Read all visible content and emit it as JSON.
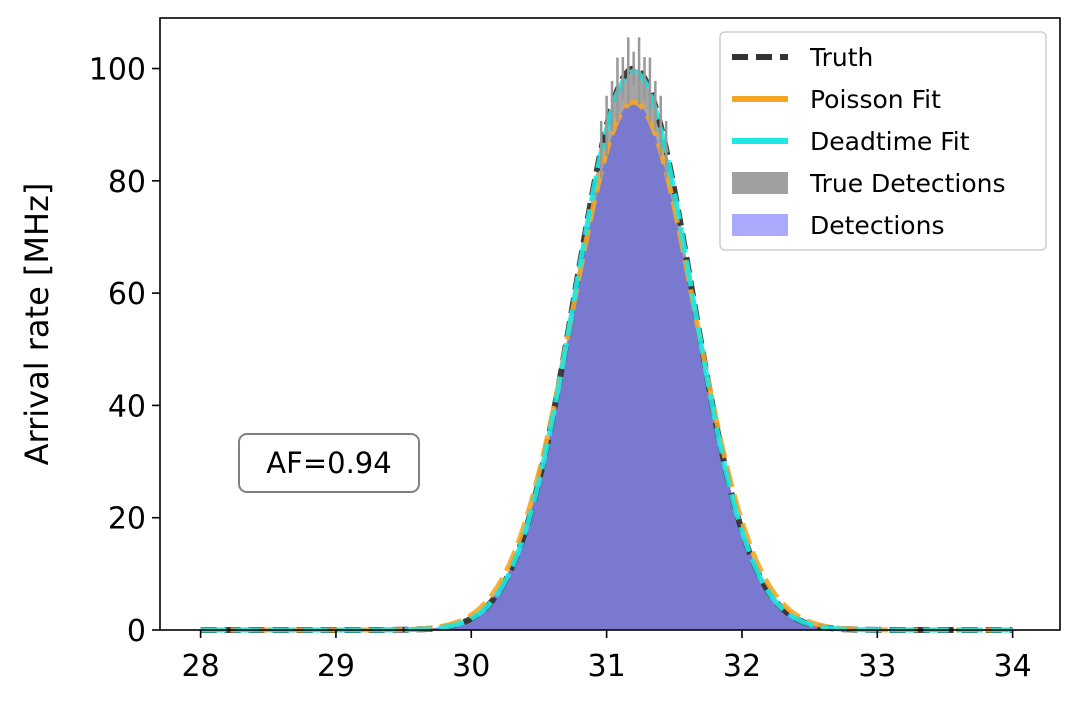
{
  "chart_data": {
    "type": "area",
    "title": "",
    "xlabel": "",
    "ylabel": "Arrival rate [MHz]",
    "xlim": [
      27.7,
      34.35
    ],
    "ylim": [
      0,
      109
    ],
    "xticks": [
      28,
      29,
      30,
      31,
      32,
      33,
      34
    ],
    "yticks": [
      0,
      20,
      40,
      60,
      80,
      100
    ],
    "grid": false,
    "legend_position": "top-right",
    "annotation": "AF=0.94",
    "x_range": [
      28.0,
      34.0
    ],
    "series": [
      {
        "name": "Truth",
        "style": "dashed-line",
        "color": "#333333",
        "peak": 100,
        "center": 31.2,
        "sigma": 0.43
      },
      {
        "name": "Poisson Fit",
        "style": "dashed-line",
        "color": "#f5a623",
        "peak": 94,
        "center": 31.2,
        "sigma": 0.45
      },
      {
        "name": "Deadtime Fit",
        "style": "dashed-line",
        "color": "#1de9e3",
        "peak": 99.5,
        "center": 31.2,
        "sigma": 0.43
      },
      {
        "name": "True Detections",
        "style": "filled",
        "color": "#a0a0a0",
        "peak": 100,
        "center": 31.2,
        "sigma": 0.43
      },
      {
        "name": "Detections",
        "style": "filled",
        "color": "#aaaaff",
        "peak": 94,
        "center": 31.2,
        "sigma": 0.44
      }
    ]
  }
}
